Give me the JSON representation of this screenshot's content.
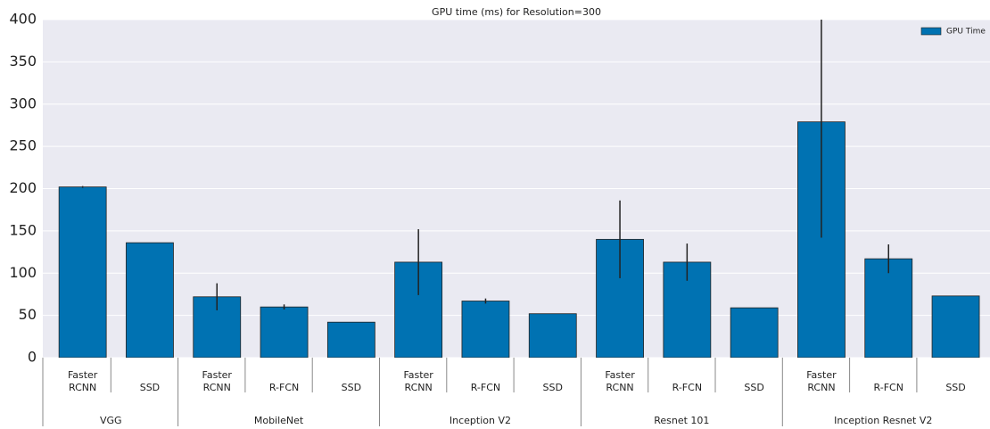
{
  "chart_data": {
    "type": "bar",
    "title": "GPU time (ms) for Resolution=300",
    "series": [
      {
        "name": "GPU Time",
        "color": "#0072b2"
      }
    ],
    "legend": "upper right",
    "grid": true,
    "ylim": [
      0,
      400
    ],
    "yticks": [
      0,
      50,
      100,
      150,
      200,
      250,
      300,
      350,
      400
    ],
    "groups": [
      {
        "name": "VGG",
        "categories": [
          "Faster RCNN",
          "SSD"
        ],
        "values": [
          202,
          136
        ],
        "errors": [
          1,
          0
        ]
      },
      {
        "name": "MobileNet",
        "categories": [
          "Faster RCNN",
          "R-FCN",
          "SSD"
        ],
        "values": [
          72,
          60,
          42
        ],
        "errors": [
          16,
          3,
          0
        ]
      },
      {
        "name": "Inception V2",
        "categories": [
          "Faster RCNN",
          "R-FCN",
          "SSD"
        ],
        "values": [
          113,
          67,
          52
        ],
        "errors": [
          39,
          3,
          0
        ]
      },
      {
        "name": "Resnet 101",
        "categories": [
          "Faster RCNN",
          "R-FCN",
          "SSD"
        ],
        "values": [
          140,
          113,
          59
        ],
        "errors": [
          46,
          22,
          0
        ]
      },
      {
        "name": "Inception Resnet V2",
        "categories": [
          "Faster RCNN",
          "R-FCN",
          "SSD"
        ],
        "values": [
          279,
          117,
          73
        ],
        "errors": [
          137,
          17,
          0
        ]
      }
    ]
  }
}
